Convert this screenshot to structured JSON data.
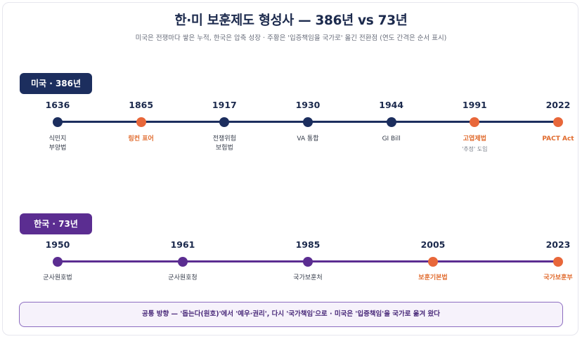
{
  "title": "한·미 보훈제도 형성사 — 386년 vs 73년",
  "subtitle": "미국은 전쟁마다 쌓은 누적, 한국은 압축 성장 · 주황은 '입증책임을 국가로' 옮긴 전환점 (연도 간격은 순서 표시)",
  "colors": {
    "us_track": "#1c2e5e",
    "kr_track": "#5b2d91",
    "turning_point": "#e8673a",
    "footer_border": "#8c6cc0"
  },
  "us": {
    "badge": "미국 · 386년",
    "events": [
      {
        "year": "1636",
        "label": "식민지\n부양법",
        "turning_point": false
      },
      {
        "year": "1865",
        "label": "링컨 표어",
        "turning_point": true
      },
      {
        "year": "1917",
        "label": "전쟁위험\n보험법",
        "turning_point": false
      },
      {
        "year": "1930",
        "label": "VA 통합",
        "turning_point": false
      },
      {
        "year": "1944",
        "label": "GI Bill",
        "turning_point": false
      },
      {
        "year": "1991",
        "label": "고엽제법",
        "note": "'추정' 도입",
        "turning_point": true
      },
      {
        "year": "2022",
        "label": "PACT Act",
        "turning_point": true
      }
    ]
  },
  "kr": {
    "badge": "한국 · 73년",
    "events": [
      {
        "year": "1950",
        "label": "군사원호법",
        "turning_point": false
      },
      {
        "year": "1961",
        "label": "군사원호청",
        "turning_point": false
      },
      {
        "year": "1985",
        "label": "국가보훈처",
        "turning_point": false
      },
      {
        "year": "2005",
        "label": "보훈기본법",
        "turning_point": true
      },
      {
        "year": "2023",
        "label": "국가보훈부",
        "turning_point": true
      }
    ]
  },
  "footer": "공통 방향 — '돕는다(원호)'에서 '예우·권리', 다시 '국가책임'으로 · 미국은 '입증책임'을 국가로 옮겨 왔다"
}
